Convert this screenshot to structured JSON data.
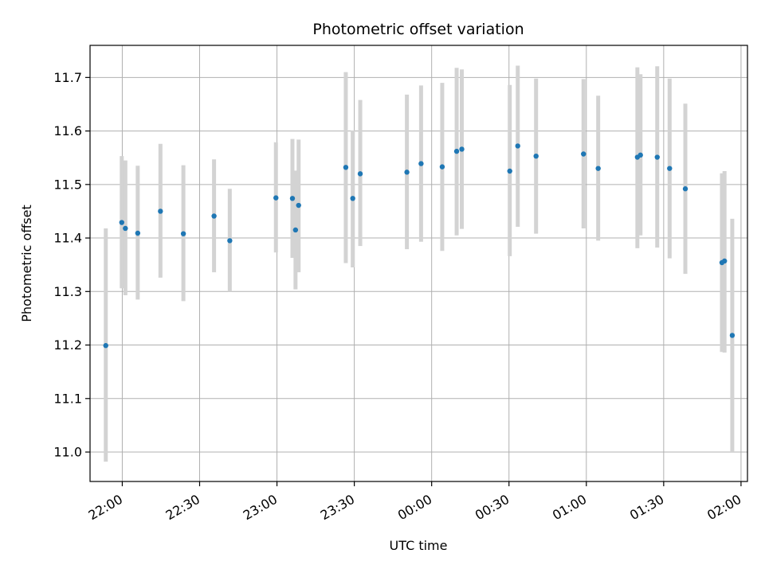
{
  "chart_data": {
    "type": "scatter",
    "title": "Photometric offset variation",
    "xlabel": "UTC time",
    "ylabel": "Photometric offset",
    "x_unit": "minutes_since_21:00_UTC",
    "x_ticks": [
      {
        "value": 60,
        "label": "22:00"
      },
      {
        "value": 90,
        "label": "22:30"
      },
      {
        "value": 120,
        "label": "23:00"
      },
      {
        "value": 150,
        "label": "23:30"
      },
      {
        "value": 180,
        "label": "00:00"
      },
      {
        "value": 210,
        "label": "00:30"
      },
      {
        "value": 240,
        "label": "01:00"
      },
      {
        "value": 270,
        "label": "01:30"
      },
      {
        "value": 300,
        "label": "02:00"
      }
    ],
    "xlim": [
      47.5,
      302.5
    ],
    "y_ticks": [
      "11.0",
      "11.1",
      "11.2",
      "11.3",
      "11.4",
      "11.5",
      "11.6",
      "11.7"
    ],
    "ylim": [
      10.945,
      11.76
    ],
    "grid": true,
    "colors": {
      "point": "#1f77b4",
      "errorbar": "#d3d3d3",
      "grid": "#b0b0b0"
    },
    "points": [
      {
        "x": 53.6,
        "y": 11.199,
        "low": 10.982,
        "high": 11.418
      },
      {
        "x": 59.8,
        "y": 11.429,
        "low": 11.306,
        "high": 11.553
      },
      {
        "x": 61.2,
        "y": 11.418,
        "low": 11.293,
        "high": 11.545
      },
      {
        "x": 66.0,
        "y": 11.409,
        "low": 11.285,
        "high": 11.535
      },
      {
        "x": 74.8,
        "y": 11.45,
        "low": 11.326,
        "high": 11.576
      },
      {
        "x": 83.7,
        "y": 11.408,
        "low": 11.282,
        "high": 11.536
      },
      {
        "x": 95.6,
        "y": 11.441,
        "low": 11.336,
        "high": 11.547
      },
      {
        "x": 101.7,
        "y": 11.395,
        "low": 11.3,
        "high": 11.492
      },
      {
        "x": 119.6,
        "y": 11.475,
        "low": 11.373,
        "high": 11.579
      },
      {
        "x": 126.0,
        "y": 11.474,
        "low": 11.363,
        "high": 11.585
      },
      {
        "x": 127.2,
        "y": 11.415,
        "low": 11.304,
        "high": 11.526
      },
      {
        "x": 128.4,
        "y": 11.461,
        "low": 11.336,
        "high": 11.584
      },
      {
        "x": 146.7,
        "y": 11.532,
        "low": 11.353,
        "high": 11.71
      },
      {
        "x": 149.4,
        "y": 11.474,
        "low": 11.345,
        "high": 11.601
      },
      {
        "x": 152.3,
        "y": 11.52,
        "low": 11.385,
        "high": 11.658
      },
      {
        "x": 170.4,
        "y": 11.523,
        "low": 11.379,
        "high": 11.668
      },
      {
        "x": 175.9,
        "y": 11.539,
        "low": 11.393,
        "high": 11.685
      },
      {
        "x": 184.1,
        "y": 11.533,
        "low": 11.376,
        "high": 11.69
      },
      {
        "x": 189.7,
        "y": 11.562,
        "low": 11.405,
        "high": 11.718
      },
      {
        "x": 191.7,
        "y": 11.566,
        "low": 11.417,
        "high": 11.715
      },
      {
        "x": 210.3,
        "y": 11.525,
        "low": 11.366,
        "high": 11.686
      },
      {
        "x": 213.4,
        "y": 11.572,
        "low": 11.421,
        "high": 11.722
      },
      {
        "x": 220.5,
        "y": 11.553,
        "low": 11.408,
        "high": 11.698
      },
      {
        "x": 238.9,
        "y": 11.557,
        "low": 11.418,
        "high": 11.697
      },
      {
        "x": 244.6,
        "y": 11.53,
        "low": 11.395,
        "high": 11.666
      },
      {
        "x": 259.8,
        "y": 11.551,
        "low": 11.381,
        "high": 11.719
      },
      {
        "x": 261.0,
        "y": 11.555,
        "low": 11.405,
        "high": 11.706
      },
      {
        "x": 267.5,
        "y": 11.551,
        "low": 11.382,
        "high": 11.721
      },
      {
        "x": 272.3,
        "y": 11.53,
        "low": 11.362,
        "high": 11.698
      },
      {
        "x": 278.4,
        "y": 11.492,
        "low": 11.333,
        "high": 11.651
      },
      {
        "x": 292.6,
        "y": 11.354,
        "low": 11.187,
        "high": 11.521
      },
      {
        "x": 293.6,
        "y": 11.357,
        "low": 11.186,
        "high": 11.525
      },
      {
        "x": 296.6,
        "y": 11.218,
        "low": 11.0,
        "high": 11.436
      }
    ]
  }
}
